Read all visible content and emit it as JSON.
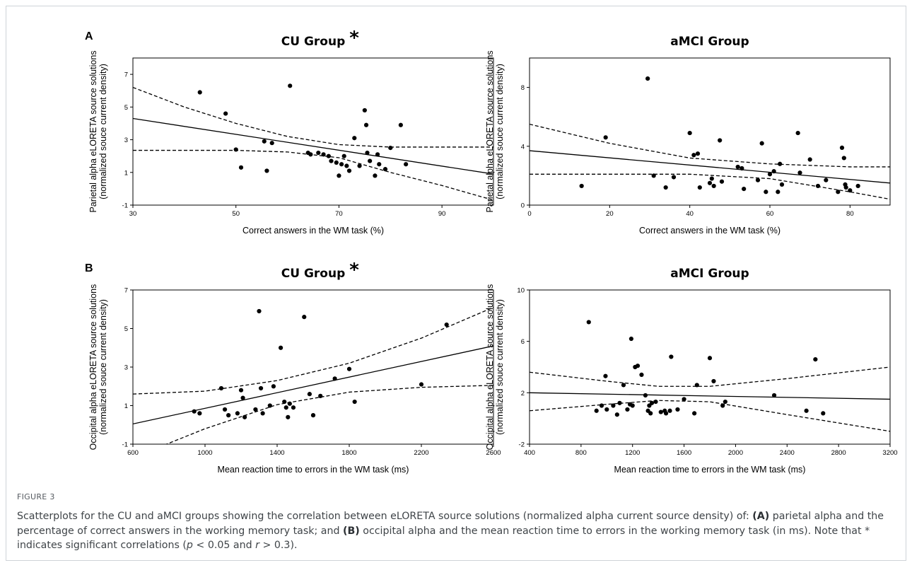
{
  "figure_label": "FIGURE 3",
  "caption": {
    "p1": "Scatterplots for the CU and aMCI groups showing the correlation between eLORETA source solutions (normalized alpha current source density) of: ",
    "a_tag": "(A)",
    "p2": " parietal alpha and the percentage of correct answers in the working memory task; and ",
    "b_tag": "(B)",
    "p3": " occipital alpha and the mean reaction time to errors in the working memory task (in ms). Note that * indicates significant correlations (",
    "p_sym": "p",
    "p4": " < 0.05 and ",
    "r_sym": "r",
    "p5": " > 0.3)."
  },
  "chart_data": [
    {
      "panel_label": "A",
      "type": "scatter",
      "title": "CU Group",
      "significance_mark": "*",
      "xlabel": "Correct answers in the WM task (%)",
      "ylabel_line1": "Parietal alpha  eLORETA source solutions",
      "ylabel_line2": "(normalized souce current density)",
      "xlim": [
        30,
        100
      ],
      "ylim": [
        -1,
        8
      ],
      "xticks": [
        30,
        50,
        70,
        90
      ],
      "yticks": [
        -1,
        1,
        3,
        5,
        7
      ],
      "points": [
        [
          43,
          5.9
        ],
        [
          48,
          4.6
        ],
        [
          50,
          2.4
        ],
        [
          51,
          1.3
        ],
        [
          55.5,
          2.9
        ],
        [
          56,
          1.1
        ],
        [
          57,
          2.8
        ],
        [
          60.5,
          6.3
        ],
        [
          64,
          2.2
        ],
        [
          64.5,
          2.1
        ],
        [
          66,
          2.2
        ],
        [
          67,
          2.1
        ],
        [
          68,
          2.0
        ],
        [
          68.5,
          1.7
        ],
        [
          69.5,
          1.6
        ],
        [
          70,
          0.8
        ],
        [
          70.5,
          1.5
        ],
        [
          71,
          2.0
        ],
        [
          71.5,
          1.4
        ],
        [
          72,
          1.1
        ],
        [
          73,
          3.1
        ],
        [
          74,
          1.4
        ],
        [
          75,
          4.8
        ],
        [
          75.3,
          3.9
        ],
        [
          75.5,
          2.2
        ],
        [
          76,
          1.7
        ],
        [
          77,
          0.8
        ],
        [
          77.5,
          2.1
        ],
        [
          77.8,
          1.5
        ],
        [
          79,
          1.2
        ],
        [
          80,
          2.5
        ],
        [
          82,
          3.9
        ],
        [
          83,
          1.5
        ]
      ],
      "fit": [
        [
          30,
          4.3
        ],
        [
          100,
          0.9
        ]
      ],
      "ci_upper": [
        [
          30,
          6.2
        ],
        [
          40,
          5.0
        ],
        [
          50,
          4.0
        ],
        [
          60,
          3.2
        ],
        [
          70,
          2.7
        ],
        [
          80,
          2.55
        ],
        [
          90,
          2.55
        ],
        [
          100,
          2.55
        ]
      ],
      "ci_lower": [
        [
          30,
          2.35
        ],
        [
          40,
          2.35
        ],
        [
          50,
          2.35
        ],
        [
          60,
          2.25
        ],
        [
          70,
          1.9
        ],
        [
          80,
          1.0
        ],
        [
          90,
          0.2
        ],
        [
          100,
          -0.7
        ]
      ]
    },
    {
      "panel_label": "",
      "type": "scatter",
      "title": "aMCI Group",
      "significance_mark": "",
      "xlabel": "Correct answers in the WM task (%)",
      "ylabel_line1": "Parietal alpha  eLORETA source solutions",
      "ylabel_line2": "(normalized souce current density)",
      "xlim": [
        0,
        90
      ],
      "ylim": [
        0,
        10
      ],
      "xticks": [
        0,
        20,
        40,
        60,
        80
      ],
      "yticks": [
        0,
        4,
        8
      ],
      "points": [
        [
          13,
          1.3
        ],
        [
          19,
          4.6
        ],
        [
          29.5,
          8.6
        ],
        [
          31,
          2.0
        ],
        [
          34,
          1.2
        ],
        [
          36,
          1.9
        ],
        [
          40,
          4.9
        ],
        [
          41,
          3.4
        ],
        [
          42,
          3.5
        ],
        [
          42.5,
          1.2
        ],
        [
          45,
          1.5
        ],
        [
          45.5,
          1.8
        ],
        [
          46,
          1.3
        ],
        [
          47.5,
          4.4
        ],
        [
          48,
          1.6
        ],
        [
          52,
          2.6
        ],
        [
          53,
          2.5
        ],
        [
          53.5,
          1.1
        ],
        [
          57,
          1.7
        ],
        [
          58,
          4.2
        ],
        [
          59,
          0.9
        ],
        [
          60,
          2.1
        ],
        [
          61,
          2.3
        ],
        [
          62,
          0.9
        ],
        [
          62.5,
          2.8
        ],
        [
          63,
          1.4
        ],
        [
          67,
          4.9
        ],
        [
          67.5,
          2.2
        ],
        [
          70,
          3.1
        ],
        [
          72,
          1.3
        ],
        [
          74,
          1.7
        ],
        [
          77,
          0.9
        ],
        [
          78,
          3.9
        ],
        [
          78.5,
          3.2
        ],
        [
          78.8,
          1.4
        ],
        [
          79,
          1.2
        ],
        [
          80,
          1.0
        ],
        [
          82,
          1.3
        ]
      ],
      "fit": [
        [
          0,
          3.7
        ],
        [
          90,
          1.5
        ]
      ],
      "ci_upper": [
        [
          0,
          5.5
        ],
        [
          20,
          4.2
        ],
        [
          40,
          3.2
        ],
        [
          60,
          2.8
        ],
        [
          80,
          2.6
        ],
        [
          90,
          2.6
        ]
      ],
      "ci_lower": [
        [
          0,
          2.1
        ],
        [
          20,
          2.1
        ],
        [
          40,
          2.1
        ],
        [
          60,
          1.8
        ],
        [
          80,
          0.9
        ],
        [
          90,
          0.4
        ]
      ]
    },
    {
      "panel_label": "B",
      "type": "scatter",
      "title": "CU Group",
      "significance_mark": "*",
      "xlabel": "Mean reaction time to errors in the WM task (ms)",
      "ylabel_line1": "Occipital alpha  eLORETA source solutions",
      "ylabel_line2": "(normalized souce current density)",
      "xlim": [
        600,
        2600
      ],
      "ylim": [
        -1,
        7
      ],
      "xticks": [
        600,
        1000,
        1400,
        1800,
        2200,
        2600
      ],
      "yticks": [
        -1,
        1,
        3,
        5,
        7
      ],
      "points": [
        [
          940,
          0.7
        ],
        [
          970,
          0.6
        ],
        [
          1090,
          1.9
        ],
        [
          1110,
          0.8
        ],
        [
          1130,
          0.5
        ],
        [
          1180,
          0.6
        ],
        [
          1200,
          1.8
        ],
        [
          1210,
          1.4
        ],
        [
          1220,
          0.4
        ],
        [
          1280,
          0.8
        ],
        [
          1300,
          5.9
        ],
        [
          1310,
          1.9
        ],
        [
          1320,
          0.6
        ],
        [
          1360,
          1.0
        ],
        [
          1380,
          2.0
        ],
        [
          1420,
          4.0
        ],
        [
          1440,
          1.2
        ],
        [
          1450,
          0.9
        ],
        [
          1460,
          0.4
        ],
        [
          1470,
          1.1
        ],
        [
          1490,
          0.9
        ],
        [
          1550,
          5.6
        ],
        [
          1580,
          1.6
        ],
        [
          1600,
          0.5
        ],
        [
          1640,
          1.5
        ],
        [
          1720,
          2.4
        ],
        [
          1800,
          2.9
        ],
        [
          1830,
          1.2
        ],
        [
          2200,
          2.1
        ],
        [
          2340,
          5.2
        ]
      ],
      "fit": [
        [
          600,
          0.05
        ],
        [
          2600,
          4.1
        ]
      ],
      "ci_upper": [
        [
          600,
          1.6
        ],
        [
          1000,
          1.75
        ],
        [
          1400,
          2.3
        ],
        [
          1800,
          3.2
        ],
        [
          2200,
          4.5
        ],
        [
          2600,
          6.1
        ]
      ],
      "ci_lower": [
        [
          600,
          -1.7
        ],
        [
          1000,
          -0.2
        ],
        [
          1400,
          1.05
        ],
        [
          1800,
          1.7
        ],
        [
          2200,
          1.95
        ],
        [
          2600,
          2.05
        ]
      ]
    },
    {
      "panel_label": "",
      "type": "scatter",
      "title": "aMCI Group",
      "significance_mark": "",
      "xlabel": "Mean reaction time to errors in the WM task (ms)",
      "ylabel_line1": "Occipital alpha  eLORETA source solutions",
      "ylabel_line2": "(normalized souce current density)",
      "xlim": [
        400,
        3200
      ],
      "ylim": [
        -2,
        10
      ],
      "xticks": [
        400,
        800,
        1200,
        1600,
        2000,
        2400,
        2800,
        3200
      ],
      "yticks": [
        -2,
        2,
        6,
        10
      ],
      "points": [
        [
          860,
          7.5
        ],
        [
          920,
          0.6
        ],
        [
          960,
          1.0
        ],
        [
          990,
          3.3
        ],
        [
          1000,
          0.7
        ],
        [
          1050,
          1.0
        ],
        [
          1080,
          0.3
        ],
        [
          1100,
          1.2
        ],
        [
          1130,
          2.6
        ],
        [
          1160,
          0.7
        ],
        [
          1180,
          1.1
        ],
        [
          1190,
          6.2
        ],
        [
          1200,
          1.0
        ],
        [
          1220,
          4.0
        ],
        [
          1240,
          4.1
        ],
        [
          1270,
          3.4
        ],
        [
          1300,
          1.8
        ],
        [
          1320,
          0.6
        ],
        [
          1330,
          1.0
        ],
        [
          1340,
          0.4
        ],
        [
          1350,
          1.2
        ],
        [
          1380,
          1.3
        ],
        [
          1420,
          0.5
        ],
        [
          1450,
          0.6
        ],
        [
          1460,
          0.4
        ],
        [
          1490,
          0.6
        ],
        [
          1500,
          4.8
        ],
        [
          1550,
          0.7
        ],
        [
          1600,
          1.5
        ],
        [
          1680,
          0.4
        ],
        [
          1700,
          2.6
        ],
        [
          1800,
          4.7
        ],
        [
          1830,
          2.9
        ],
        [
          1900,
          1.0
        ],
        [
          1920,
          1.3
        ],
        [
          2300,
          1.8
        ],
        [
          2550,
          0.6
        ],
        [
          2620,
          4.6
        ],
        [
          2680,
          0.4
        ]
      ],
      "fit": [
        [
          400,
          2.0
        ],
        [
          3200,
          1.5
        ]
      ],
      "ci_upper": [
        [
          400,
          3.6
        ],
        [
          1000,
          2.9
        ],
        [
          1400,
          2.5
        ],
        [
          1800,
          2.5
        ],
        [
          2400,
          3.1
        ],
        [
          3200,
          4.0
        ]
      ],
      "ci_lower": [
        [
          400,
          0.6
        ],
        [
          1000,
          1.1
        ],
        [
          1400,
          1.4
        ],
        [
          1800,
          1.3
        ],
        [
          2400,
          0.3
        ],
        [
          3200,
          -1.0
        ]
      ]
    }
  ]
}
